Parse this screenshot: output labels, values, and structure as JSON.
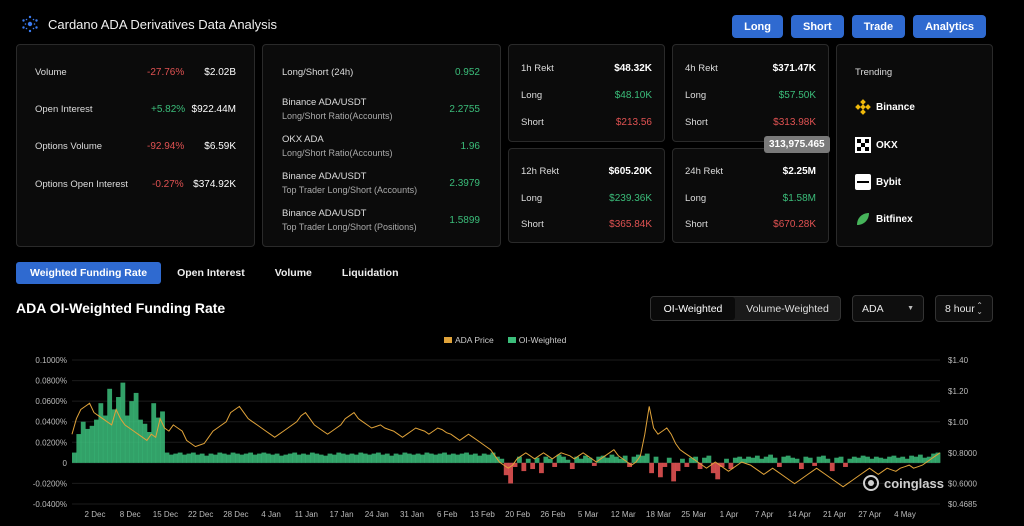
{
  "header": {
    "title": "Cardano ADA Derivatives Data Analysis"
  },
  "top_buttons": [
    "Long",
    "Short",
    "Trade",
    "Analytics"
  ],
  "stats": [
    {
      "label": "Volume",
      "change": "-27.76%",
      "value": "$2.02B",
      "dir": "down"
    },
    {
      "label": "Open Interest",
      "change": "+5.82%",
      "value": "$922.44M",
      "dir": "up"
    },
    {
      "label": "Options Volume",
      "change": "-92.94%",
      "value": "$6.59K",
      "dir": "down"
    },
    {
      "label": "Options Open Interest",
      "change": "-0.27%",
      "value": "$374.92K",
      "dir": "down"
    }
  ],
  "ratios": [
    {
      "label": "Long/Short (24h)",
      "sub": "",
      "value": "0.952"
    },
    {
      "label": "Binance ADA/USDT",
      "sub": "Long/Short Ratio(Accounts)",
      "value": "2.2755"
    },
    {
      "label": "OKX ADA",
      "sub": "Long/Short Ratio(Accounts)",
      "value": "1.96"
    },
    {
      "label": "Binance ADA/USDT",
      "sub": "Top Trader Long/Short (Accounts)",
      "value": "2.3979"
    },
    {
      "label": "Binance ADA/USDT",
      "sub": "Top Trader Long/Short (Positions)",
      "value": "1.5899"
    }
  ],
  "rekt": [
    {
      "title": "1h Rekt",
      "total": "$48.32K",
      "long": "$48.10K",
      "short": "$213.56"
    },
    {
      "title": "4h Rekt",
      "total": "$371.47K",
      "long": "$57.50K",
      "short": "$313.98K"
    },
    {
      "title": "12h Rekt",
      "total": "$605.20K",
      "long": "$239.36K",
      "short": "$365.84K"
    },
    {
      "title": "24h Rekt",
      "total": "$2.25M",
      "long": "$1.58M",
      "short": "$670.28K"
    }
  ],
  "rekt_labels": {
    "long": "Long",
    "short": "Short"
  },
  "tooltip_badge": "313,975.465",
  "trending": {
    "title": "Trending",
    "items": [
      "Binance",
      "OKX",
      "Bybit",
      "Bitfinex"
    ]
  },
  "tabs": [
    "Weighted Funding Rate",
    "Open Interest",
    "Volume",
    "Liquidation"
  ],
  "chart_title": "ADA OI-Weighted Funding Rate",
  "toggle": [
    "OI-Weighted",
    "Volume-Weighted"
  ],
  "coin_select": "ADA",
  "interval_select": "8 hour",
  "watermark": "coinglass",
  "colors": {
    "accent": "#2f6ad0",
    "price": "#e0a33a",
    "positive": "#3bbd7a",
    "negative": "#e05252"
  },
  "chart_data": {
    "type": "area",
    "legend": [
      "ADA Price",
      "OI-Weighted"
    ],
    "legend_position": "top-center",
    "x_ticks": [
      "2 Dec",
      "8 Dec",
      "15 Dec",
      "22 Dec",
      "28 Dec",
      "4 Jan",
      "11 Jan",
      "17 Jan",
      "24 Jan",
      "31 Jan",
      "6 Feb",
      "13 Feb",
      "20 Feb",
      "26 Feb",
      "5 Mar",
      "12 Mar",
      "18 Mar",
      "25 Mar",
      "1 Apr",
      "7 Apr",
      "14 Apr",
      "21 Apr",
      "27 Apr",
      "4 May"
    ],
    "y_left_ticks": [
      "0.1000%",
      "0.0800%",
      "0.0600%",
      "0.0400%",
      "0.0200%",
      "0",
      "-0.0200%",
      "-0.0400%"
    ],
    "y_left_range": [
      -0.04,
      0.1
    ],
    "y_right_ticks": [
      "$1.40",
      "$1.20",
      "$1.00",
      "$0.8000",
      "$0.6000",
      "$0.4685"
    ],
    "y_right_range": [
      0.4685,
      1.4
    ],
    "funding_rate": [
      0.01,
      0.028,
      0.04,
      0.033,
      0.036,
      0.042,
      0.058,
      0.046,
      0.072,
      0.052,
      0.064,
      0.078,
      0.046,
      0.06,
      0.068,
      0.042,
      0.038,
      0.03,
      0.058,
      0.044,
      0.05,
      0.01,
      0.008,
      0.009,
      0.01,
      0.008,
      0.009,
      0.01,
      0.008,
      0.009,
      0.007,
      0.009,
      0.008,
      0.01,
      0.009,
      0.008,
      0.01,
      0.009,
      0.008,
      0.009,
      0.01,
      0.008,
      0.009,
      0.01,
      0.009,
      0.008,
      0.009,
      0.007,
      0.008,
      0.009,
      0.01,
      0.008,
      0.009,
      0.008,
      0.01,
      0.009,
      0.008,
      0.007,
      0.009,
      0.008,
      0.01,
      0.009,
      0.008,
      0.009,
      0.008,
      0.01,
      0.009,
      0.008,
      0.009,
      0.01,
      0.008,
      0.009,
      0.007,
      0.009,
      0.008,
      0.01,
      0.009,
      0.008,
      0.009,
      0.008,
      0.01,
      0.009,
      0.008,
      0.009,
      0.01,
      0.008,
      0.009,
      0.008,
      0.009,
      0.01,
      0.008,
      0.009,
      0.007,
      0.009,
      0.008,
      0.01,
      0.006,
      0.004,
      -0.012,
      -0.02,
      -0.004,
      0.006,
      -0.008,
      0.004,
      -0.006,
      0.005,
      -0.01,
      0.006,
      0.004,
      -0.004,
      0.008,
      0.006,
      0.003,
      -0.006,
      0.006,
      0.004,
      0.007,
      0.005,
      -0.003,
      0.006,
      0.007,
      0.005,
      0.008,
      0.006,
      0.004,
      0.007,
      -0.004,
      0.006,
      0.008,
      0.007,
      0.009,
      -0.01,
      0.006,
      -0.014,
      -0.004,
      0.005,
      -0.018,
      -0.008,
      0.004,
      -0.004,
      0.005,
      0.006,
      -0.006,
      0.005,
      0.007,
      -0.01,
      -0.016,
      -0.004,
      0.004,
      -0.006,
      0.005,
      0.006,
      0.004,
      0.006,
      0.005,
      0.007,
      0.004,
      0.006,
      0.008,
      0.005,
      -0.004,
      0.006,
      0.007,
      0.005,
      0.004,
      -0.006,
      0.006,
      0.005,
      -0.003,
      0.006,
      0.007,
      0.004,
      -0.008,
      0.005,
      0.006,
      -0.004,
      0.004,
      0.006,
      0.005,
      0.007,
      0.006,
      0.004,
      0.006,
      0.005,
      0.004,
      0.006,
      0.007,
      0.005,
      0.006,
      0.004,
      0.007,
      0.006,
      0.008,
      0.005,
      0.006,
      0.009,
      0.01
    ],
    "ada_price": [
      0.92,
      1.02,
      1.08,
      1.1,
      1.12,
      1.06,
      1.04,
      1.02,
      1.0,
      0.98,
      1.08,
      1.02,
      0.98,
      0.96,
      0.94,
      0.92,
      0.9,
      0.88,
      0.92,
      0.9,
      1.02,
      0.96,
      0.94,
      0.98,
      0.96,
      0.94,
      0.88,
      0.86,
      0.84,
      0.85,
      0.86,
      0.9,
      0.94,
      0.96,
      0.98,
      1.0,
      1.06,
      1.08,
      1.1,
      1.06,
      1.02,
      1.0,
      0.98,
      0.96,
      0.94,
      0.92,
      0.9,
      0.92,
      0.94,
      0.96,
      0.98,
      1.0,
      1.04,
      1.06,
      1.02,
      0.98,
      0.96,
      0.94,
      0.92,
      0.94,
      0.96,
      0.98,
      1.02,
      1.04,
      1.06,
      1.02,
      1.0,
      0.98,
      0.96,
      0.97,
      0.98,
      0.96,
      0.95,
      0.94,
      0.92,
      0.9,
      0.92,
      0.94,
      0.96,
      0.95,
      0.94,
      0.92,
      0.94,
      0.96,
      0.95,
      0.93,
      0.92,
      0.9,
      0.88,
      0.9,
      0.92,
      0.9,
      0.88,
      0.86,
      0.84,
      0.82,
      0.78,
      0.74,
      0.72,
      0.7,
      0.72,
      0.76,
      0.78,
      0.8,
      0.78,
      0.76,
      0.78,
      0.8,
      0.78,
      0.76,
      0.78,
      0.8,
      0.79,
      0.78,
      0.76,
      0.78,
      0.8,
      0.78,
      0.76,
      0.74,
      0.76,
      0.78,
      0.8,
      0.82,
      0.78,
      0.76,
      0.74,
      0.72,
      0.74,
      0.78,
      0.92,
      1.1,
      0.96,
      0.92,
      0.94,
      0.96,
      0.92,
      0.86,
      0.82,
      0.8,
      0.78,
      0.76,
      0.74,
      0.72,
      0.7,
      0.72,
      0.74,
      0.72,
      0.7,
      0.68,
      0.7,
      0.72,
      0.74,
      0.73,
      0.72,
      0.7,
      0.68,
      0.66,
      0.68,
      0.7,
      0.68,
      0.66,
      0.64,
      0.62,
      0.6,
      0.62,
      0.64,
      0.66,
      0.68,
      0.7,
      0.68,
      0.66,
      0.64,
      0.62,
      0.6,
      0.58,
      0.6,
      0.62,
      0.64,
      0.66,
      0.68,
      0.7,
      0.68,
      0.66,
      0.68,
      0.7,
      0.69,
      0.68,
      0.7,
      0.71,
      0.72,
      0.7,
      0.71,
      0.72,
      0.74,
      0.76,
      0.78,
      0.8
    ]
  }
}
